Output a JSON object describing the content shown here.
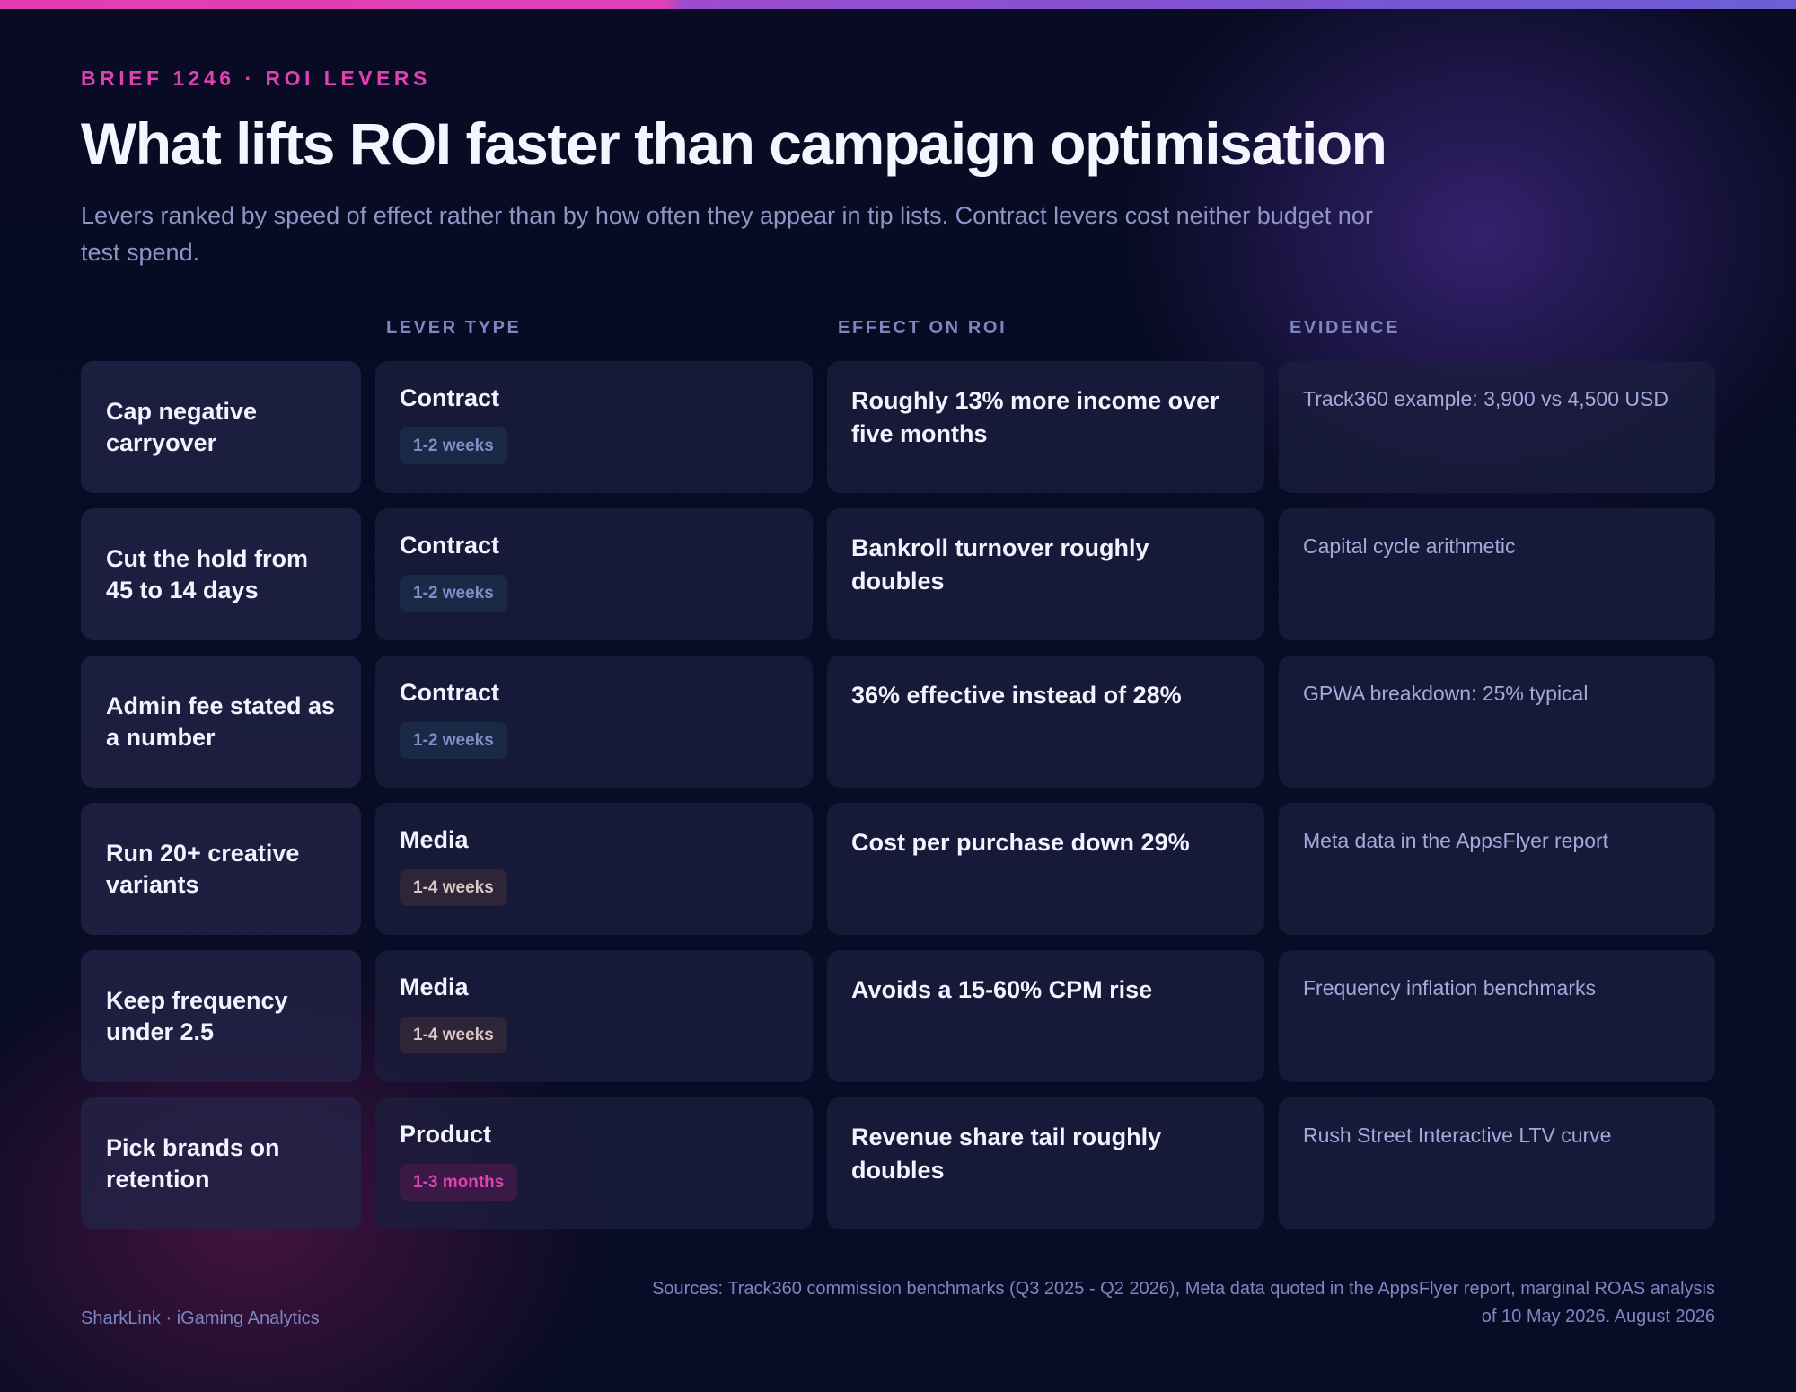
{
  "header": {
    "eyebrow": "BRIEF 1246 · ROI LEVERS",
    "title": "What lifts ROI faster than campaign optimisation",
    "subtitle": "Levers ranked by speed of effect rather than by how often they appear in tip lists. Contract levers cost neither budget nor test spend."
  },
  "columns": {
    "lever_type": "LEVER TYPE",
    "effect": "EFFECT ON ROI",
    "evidence": "EVIDENCE"
  },
  "colors": {
    "accent_pink": "#e040b0",
    "accent_purple": "#7a55d2",
    "background": "#080b22",
    "badge_contract": "#1a2a46",
    "badge_media": "#2e2536",
    "badge_product": "#3a1a45"
  },
  "rows": [
    {
      "lever": "Cap negative carryover",
      "type": "Contract",
      "timeframe": "1-2 weeks",
      "effect": "Roughly 13% more income over five months",
      "evidence": "Track360 example: 3,900 vs 4,500 USD"
    },
    {
      "lever": "Cut the hold from 45 to 14 days",
      "type": "Contract",
      "timeframe": "1-2 weeks",
      "effect": "Bankroll turnover roughly doubles",
      "evidence": "Capital cycle arithmetic"
    },
    {
      "lever": "Admin fee stated as a number",
      "type": "Contract",
      "timeframe": "1-2 weeks",
      "effect": "36% effective instead of 28%",
      "evidence": "GPWA breakdown: 25% typical"
    },
    {
      "lever": "Run 20+ creative variants",
      "type": "Media",
      "timeframe": "1-4 weeks",
      "effect": "Cost per purchase down 29%",
      "evidence": "Meta data in the AppsFlyer report"
    },
    {
      "lever": "Keep frequency under 2.5",
      "type": "Media",
      "timeframe": "1-4 weeks",
      "effect": "Avoids a 15-60% CPM rise",
      "evidence": "Frequency inflation benchmarks"
    },
    {
      "lever": "Pick brands on retention",
      "type": "Product",
      "timeframe": "1-3 months",
      "effect": "Revenue share tail roughly doubles",
      "evidence": "Rush Street Interactive LTV curve"
    }
  ],
  "footer": {
    "brand": "SharkLink · iGaming Analytics",
    "sources": "Sources: Track360 commission benchmarks (Q3 2025 - Q2 2026), Meta data quoted in the AppsFlyer report, marginal ROAS analysis of 10 May 2026. August 2026"
  }
}
